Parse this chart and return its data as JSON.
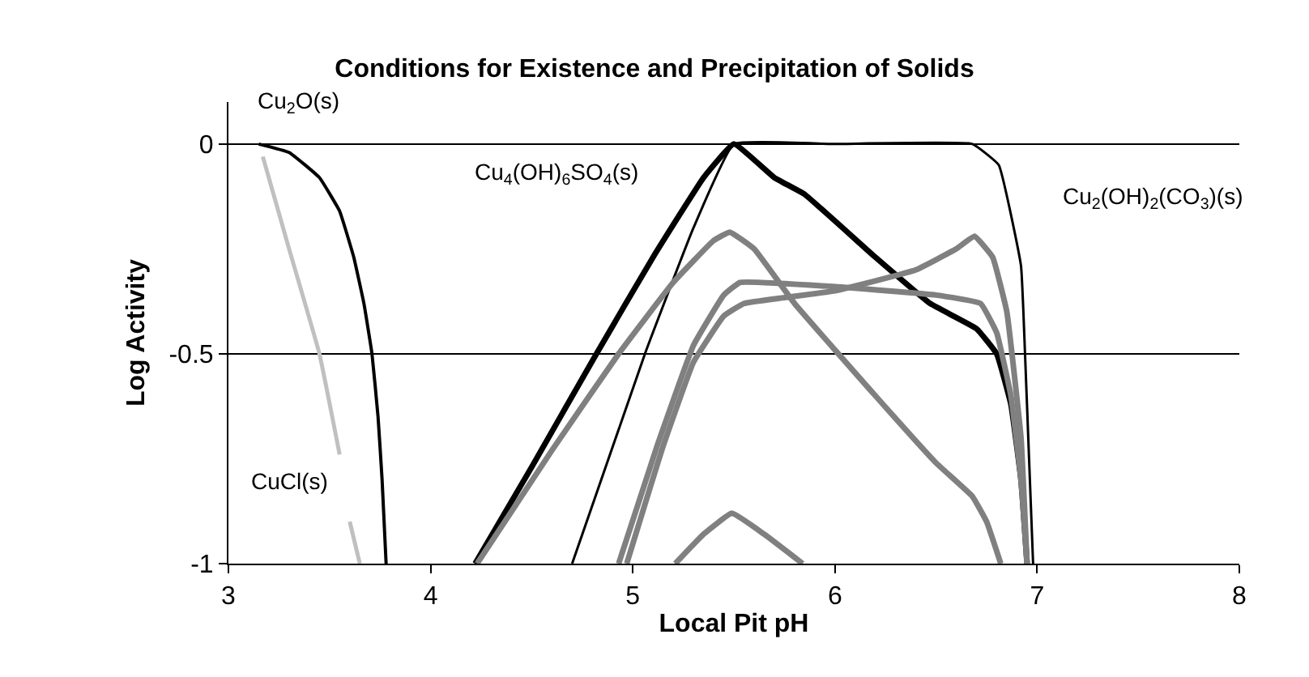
{
  "chart_data": {
    "type": "line",
    "title": "Conditions for Existence and Precipitation of Solids",
    "xlabel": "Local Pit pH",
    "ylabel": "Log Activity",
    "xlim": [
      3,
      8
    ],
    "xticks": [
      3,
      4,
      5,
      6,
      7,
      8
    ],
    "ylim": [
      -1,
      0.1
    ],
    "yticks": [
      -1,
      -0.5,
      0
    ],
    "grid": "y",
    "marker": "none",
    "line_style": "solid",
    "series": [
      {
        "color": "#000000",
        "x": [
          3.15,
          3.3,
          3.45,
          3.55,
          3.62,
          3.67,
          3.71,
          3.74,
          3.76,
          3.78
        ],
        "values": [
          0,
          -0.02,
          -0.08,
          -0.16,
          -0.27,
          -0.38,
          -0.5,
          -0.65,
          -0.8,
          -1
        ]
      },
      {
        "color": "#c0c0c0",
        "x": [
          3.17,
          3.3,
          3.45,
          3.55,
          null,
          3.6,
          3.65
        ],
        "values": [
          -0.03,
          -0.25,
          -0.5,
          -0.74,
          null,
          -0.9,
          -1
        ]
      },
      {
        "color": "#000000",
        "x": [
          4.22,
          4.5,
          4.82,
          5.1,
          5.35,
          5.5,
          5.7,
          5.85,
          6.2,
          6.47,
          6.7,
          6.8,
          6.87,
          6.92,
          6.95
        ],
        "values": [
          -1,
          -0.77,
          -0.5,
          -0.27,
          -0.08,
          0,
          -0.08,
          -0.12,
          -0.27,
          -0.38,
          -0.44,
          -0.5,
          -0.62,
          -0.8,
          -1
        ]
      },
      {
        "color": "#000000",
        "x": [
          4.7,
          5.06,
          5.3,
          5.5,
          6.0,
          6.68,
          6.81,
          6.92,
          6.94,
          6.96,
          6.98
        ],
        "values": [
          -1,
          -0.5,
          -0.2,
          0,
          0,
          0,
          -0.05,
          -0.29,
          -0.5,
          -0.75,
          -1
        ]
      },
      {
        "color": "#808080",
        "x": [
          4.23,
          4.6,
          4.93,
          5.2,
          5.4,
          5.48,
          5.6,
          5.8,
          6.2,
          6.5,
          6.68,
          6.75,
          6.82
        ],
        "values": [
          -1,
          -0.73,
          -0.5,
          -0.33,
          -0.23,
          -0.21,
          -0.25,
          -0.38,
          -0.6,
          -0.76,
          -0.84,
          -0.9,
          -1
        ]
      },
      {
        "color": "#808080",
        "x": [
          4.93,
          5.12,
          5.3,
          5.45,
          5.53,
          6.0,
          6.5,
          6.72,
          6.8,
          6.87,
          6.92,
          6.95
        ],
        "values": [
          -1,
          -0.72,
          -0.48,
          -0.36,
          -0.33,
          -0.34,
          -0.36,
          -0.38,
          -0.45,
          -0.6,
          -0.8,
          -1
        ]
      },
      {
        "color": "#808080",
        "x": [
          4.97,
          5.15,
          5.3,
          5.45,
          5.55,
          6.0,
          6.4,
          6.6,
          6.69,
          6.78,
          6.85,
          6.92,
          6.95
        ],
        "values": [
          -1,
          -0.72,
          -0.52,
          -0.41,
          -0.38,
          -0.35,
          -0.3,
          -0.25,
          -0.22,
          -0.27,
          -0.4,
          -0.7,
          -1
        ]
      },
      {
        "color": "#808080",
        "x": [
          5.21,
          5.35,
          5.49,
          5.65,
          5.84
        ],
        "values": [
          -1,
          -0.93,
          -0.88,
          -0.93,
          -1
        ]
      }
    ],
    "annotations": [
      "Cu$_{2}$O(s)",
      "Cu$_{4}$(OH)$_{6}$SO$_{4}$(s)",
      "Cu$_{2}$(OH)$_{2}$(CO$_{3}$)(s)",
      "CuCl(s)"
    ]
  }
}
